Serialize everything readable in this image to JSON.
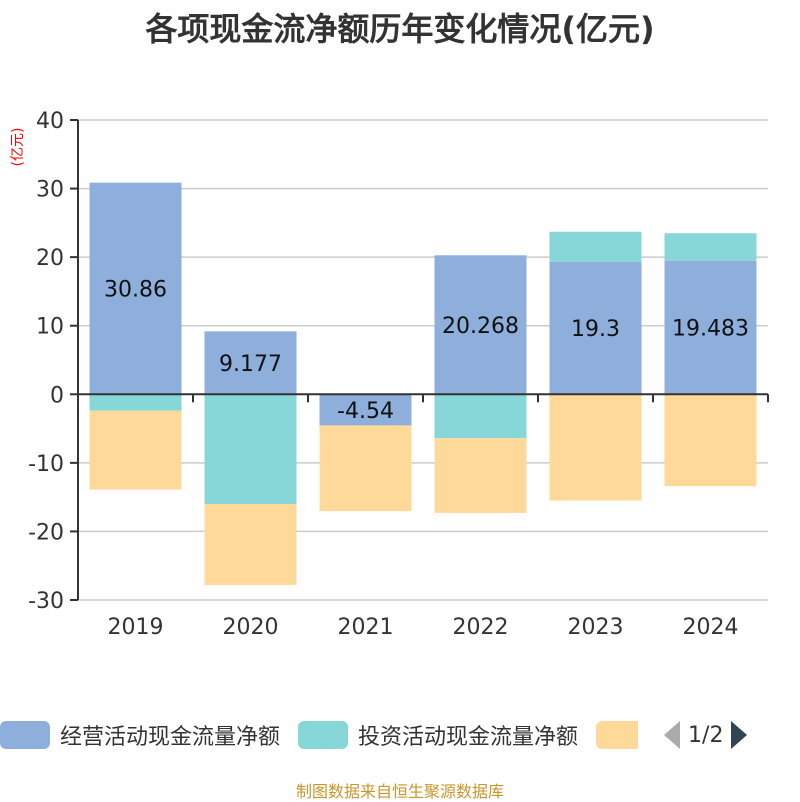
{
  "chart_data": {
    "type": "bar",
    "stacked": true,
    "title": "各项现金流净额历年变化情况(亿元)",
    "ylabel": "(亿元)",
    "xlabel": "",
    "categories": [
      "2019",
      "2020",
      "2021",
      "2022",
      "2023",
      "2024"
    ],
    "ylim": [
      -30,
      40
    ],
    "yticks": [
      40,
      30,
      20,
      10,
      0,
      -10,
      -20,
      -30
    ],
    "grid": true,
    "series": [
      {
        "name": "经营活动现金流量净额",
        "color": "#8eaedb",
        "values": [
          30.86,
          9.177,
          -4.54,
          20.268,
          19.3,
          19.483
        ],
        "labels": [
          "30.86",
          "9.177",
          "-4.54",
          "20.268",
          "19.3",
          "19.483"
        ]
      },
      {
        "name": "投资活动现金流量净额",
        "color": "#87d6d8",
        "values": [
          -2.4,
          -16.0,
          0,
          -6.4,
          4.4,
          4.0
        ]
      },
      {
        "name": "",
        "color": "#ffd99a",
        "values": [
          -11.5,
          -11.8,
          -12.5,
          -10.9,
          -15.5,
          -13.4
        ]
      }
    ],
    "legend_position": "bottom"
  },
  "legend": {
    "page": "1/2"
  },
  "footer": {
    "source": "制图数据来自恒生聚源数据库"
  },
  "colors": {
    "axis": "#333333",
    "grid": "#cccccc",
    "ylabel": "#ff0000",
    "source": "#c9962c"
  }
}
